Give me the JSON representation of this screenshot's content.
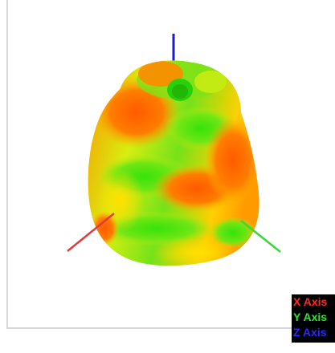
{
  "viewer": {
    "legend": [
      {
        "label": "X Axis",
        "color": "#ff2a2a"
      },
      {
        "label": "Y Axis",
        "color": "#2ee62e"
      },
      {
        "label": "Z Axis",
        "color": "#2a2aff"
      }
    ],
    "axes_colors": {
      "x": "#e03b3b",
      "y": "#38d838",
      "z": "#1c1ccc"
    },
    "surface_colors": {
      "high": "#ff6a00",
      "mid": "#ffd400",
      "low": "#40e000"
    }
  }
}
